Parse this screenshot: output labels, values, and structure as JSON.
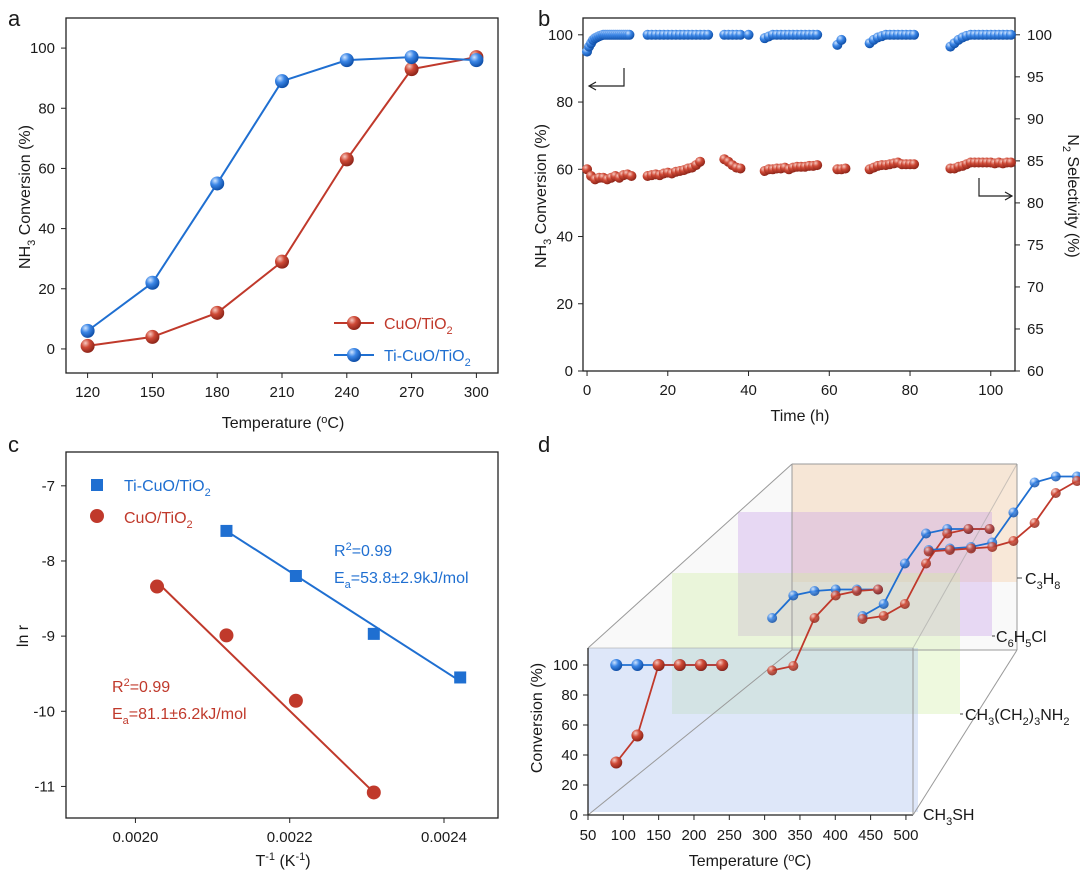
{
  "colors": {
    "red": "#c0392b",
    "blue": "#1f6fd1",
    "axis": "#222222"
  },
  "chart_data": [
    {
      "panel": "a",
      "type": "line",
      "xlabel": "Temperature (°C)",
      "ylabel": "NH3 Conversion (%)",
      "xlim": [
        110,
        310
      ],
      "ylim": [
        -8,
        110
      ],
      "x": [
        120,
        150,
        180,
        210,
        240,
        270,
        300
      ],
      "xticks": [
        "120",
        "150",
        "180",
        "210",
        "240",
        "270",
        "300"
      ],
      "yticks": [
        "0",
        "20",
        "40",
        "60",
        "80",
        "100"
      ],
      "series": [
        {
          "name": "CuO/TiO2",
          "color": "red",
          "values": [
            1,
            4,
            12,
            29,
            63,
            93,
            97
          ]
        },
        {
          "name": "Ti-CuO/TiO2",
          "color": "blue",
          "values": [
            6,
            22,
            55,
            89,
            96,
            97,
            96
          ]
        }
      ],
      "legend": [
        {
          "text": "CuO/TiO",
          "sub": "2"
        },
        {
          "text": "Ti-CuO/TiO",
          "sub": "2"
        }
      ]
    },
    {
      "panel": "b",
      "type": "scatter",
      "xlabel": "Time (h)",
      "ylabel_left": "NH3 Conversion (%)",
      "ylabel_right": "N2 Selectivity (%)",
      "xlim": [
        -1,
        106
      ],
      "ylim_left": [
        0,
        105
      ],
      "ylim_right": [
        60,
        102
      ],
      "xticks": [
        "0",
        "20",
        "40",
        "60",
        "80",
        "100"
      ],
      "yticks_left": [
        "0",
        "20",
        "40",
        "60",
        "80",
        "100"
      ],
      "yticks_right": [
        "60",
        "65",
        "70",
        "75",
        "80",
        "85",
        "90",
        "95",
        "100"
      ],
      "series": [
        {
          "name": "NH3 Conversion",
          "color": "blue",
          "axis": "left",
          "x": [
            0,
            0.5,
            1,
            1.5,
            2,
            2.5,
            3,
            3.5,
            4,
            4.5,
            5,
            5.5,
            6,
            6.5,
            7,
            7.5,
            8,
            8.5,
            9,
            9.5,
            10,
            10.5,
            15,
            16,
            17,
            18,
            19,
            20,
            21,
            22,
            23,
            24,
            25,
            26,
            27,
            28,
            29,
            30,
            34,
            35,
            36,
            37,
            38,
            40,
            44,
            45,
            46,
            47,
            48,
            49,
            50,
            51,
            52,
            53,
            54,
            55,
            56,
            57,
            62,
            63,
            70,
            71,
            72,
            73,
            74,
            75,
            76,
            77,
            78,
            79,
            80,
            81,
            90,
            91,
            92,
            93,
            94,
            95,
            96,
            97,
            98,
            99,
            100,
            101,
            102,
            103,
            104,
            105
          ],
          "y": [
            95,
            96.5,
            97.5,
            98.5,
            99,
            99.3,
            99.6,
            99.8,
            100,
            100,
            100,
            100,
            100,
            100,
            100,
            100,
            100,
            100,
            100,
            100,
            100,
            100,
            100,
            100,
            100,
            100,
            100,
            100,
            100,
            100,
            100,
            100,
            100,
            100,
            100,
            100,
            100,
            100,
            100,
            100,
            100,
            100,
            100,
            100,
            99,
            99.5,
            100,
            100,
            100,
            100,
            100,
            100,
            100,
            100,
            100,
            100,
            100,
            100,
            97,
            98.5,
            97.5,
            98.5,
            99.2,
            99.6,
            100,
            100,
            100,
            100,
            100,
            100,
            100,
            100,
            96.5,
            97.5,
            98.5,
            99.2,
            99.7,
            100,
            100,
            100,
            100,
            100,
            100,
            100,
            100,
            100,
            100,
            100
          ]
        },
        {
          "name": "N2 Selectivity",
          "color": "red",
          "axis": "right",
          "x": [
            0,
            1,
            2,
            3,
            4,
            5,
            6,
            7,
            8,
            9,
            10,
            11,
            15,
            16,
            17,
            18,
            19,
            20,
            21,
            22,
            23,
            24,
            25,
            26,
            27,
            28,
            34,
            35,
            36,
            37,
            38,
            44,
            45,
            46,
            47,
            48,
            49,
            50,
            51,
            52,
            53,
            54,
            55,
            56,
            57,
            62,
            63,
            64,
            70,
            71,
            72,
            73,
            74,
            75,
            76,
            77,
            78,
            79,
            80,
            81,
            90,
            91,
            92,
            93,
            94,
            95,
            96,
            97,
            98,
            99,
            100,
            101,
            102,
            103,
            104,
            105
          ],
          "y": [
            84,
            83.2,
            82.8,
            83,
            83,
            82.8,
            83,
            83.2,
            83,
            83.3,
            83.4,
            83.2,
            83.2,
            83.3,
            83.4,
            83.3,
            83.5,
            83.6,
            83.5,
            83.7,
            83.8,
            83.9,
            84.1,
            84.2,
            84.5,
            84.9,
            85.2,
            84.9,
            84.5,
            84.2,
            84.1,
            83.8,
            84,
            84,
            84.1,
            84.1,
            84.2,
            84,
            84.2,
            84.3,
            84.3,
            84.3,
            84.4,
            84.4,
            84.5,
            84,
            84,
            84.1,
            84,
            84.2,
            84.4,
            84.5,
            84.5,
            84.6,
            84.7,
            84.8,
            84.6,
            84.6,
            84.6,
            84.6,
            84.1,
            84.1,
            84.3,
            84.4,
            84.6,
            84.8,
            84.8,
            84.8,
            84.8,
            84.8,
            84.8,
            84.7,
            84.8,
            84.7,
            84.8,
            84.8
          ]
        }
      ]
    },
    {
      "panel": "c",
      "type": "scatter",
      "xlabel": "T-1 (K-1)",
      "ylabel": "ln r",
      "xlim": [
        0.00191,
        0.00247
      ],
      "ylim": [
        -11.42,
        -6.55
      ],
      "xticks": [
        "0.0020",
        "0.0022",
        "0.0024"
      ],
      "yticks": [
        "-7",
        "-8",
        "-9",
        "-10",
        "-11"
      ],
      "series": [
        {
          "name": "Ti-CuO/TiO2",
          "color": "blue",
          "marker": "square",
          "x": [
            0.002118,
            0.002208,
            0.002309,
            0.002421
          ],
          "y": [
            -7.6,
            -8.2,
            -8.97,
            -9.55
          ],
          "fit": {
            "x": [
              0.002118,
              0.002421
            ],
            "y": [
              -7.6,
              -9.6
            ]
          },
          "r2": {
            "text": "R",
            "sup": "2",
            "rest": "=0.99"
          },
          "ea": {
            "text": "E",
            "sub": "a",
            "rest": "=53.8±2.9kJ/mol"
          }
        },
        {
          "name": "CuO/TiO2",
          "color": "red",
          "marker": "circle",
          "x": [
            0.002028,
            0.002118,
            0.002208,
            0.002309
          ],
          "y": [
            -8.34,
            -8.99,
            -9.86,
            -11.08
          ],
          "fit": {
            "x": [
              0.002028,
              0.002309
            ],
            "y": [
              -8.28,
              -11.08
            ]
          },
          "r2": {
            "text": "R",
            "sup": "2",
            "rest": "=0.99"
          },
          "ea": {
            "text": "E",
            "sub": "a",
            "rest": "=81.1±6.2kJ/mol"
          }
        }
      ],
      "legend": [
        {
          "text": "Ti-CuO/TiO",
          "sub": "2"
        },
        {
          "text": "CuO/TiO",
          "sub": "2"
        }
      ]
    },
    {
      "panel": "d",
      "type": "line",
      "projection": "3d",
      "xlabel": "Temperature (°C)",
      "ylabel": "Conversion (%)",
      "xticks": [
        "50",
        "100",
        "150",
        "200",
        "250",
        "300",
        "350",
        "400",
        "450",
        "500"
      ],
      "yticks": [
        "0",
        "20",
        "40",
        "60",
        "80",
        "100"
      ],
      "depth_labels": [
        {
          "text": "C",
          "sub1": "3",
          "mid": "H",
          "sub2": "8"
        },
        {
          "text": "C",
          "sub1": "6",
          "mid": "H",
          "sub2": "5",
          "tail": "Cl"
        },
        {
          "text": "CH",
          "sub1": "3",
          "mid": "(CH",
          "sub2": "2",
          "mid2": ")",
          "sub3": "3",
          "tail": "NH",
          "sub4": "2"
        },
        {
          "text": "CH",
          "sub1": "3",
          "mid": "SH"
        }
      ],
      "groups": [
        {
          "layer": "CH3SH",
          "series": [
            {
              "color": "blue",
              "x": [
                90,
                120,
                150,
                180,
                210,
                240
              ],
              "y": [
                100,
                100,
                100,
                100,
                100,
                100
              ]
            },
            {
              "color": "red",
              "x": [
                90,
                120,
                150,
                180,
                210,
                240
              ],
              "y": [
                35,
                53,
                100,
                100,
                100,
                100
              ]
            }
          ]
        },
        {
          "layer": "CH3(CH2)3NH2",
          "series": [
            {
              "color": "blue",
              "x": [
                240,
                270,
                300,
                330,
                360,
                390
              ],
              "y": [
                80,
                95,
                98,
                99,
                99,
                99
              ]
            },
            {
              "color": "red",
              "x": [
                240,
                270,
                300,
                330,
                360,
                390
              ],
              "y": [
                45,
                48,
                80,
                95,
                98,
                99
              ]
            }
          ]
        },
        {
          "layer": "C6H5Cl",
          "series": [
            {
              "color": "blue",
              "x": [
                300,
                330,
                360,
                390,
                420,
                450,
                480
              ],
              "y": [
                40,
                48,
                75,
                95,
                98,
                98,
                98
              ]
            },
            {
              "color": "red",
              "x": [
                300,
                330,
                360,
                390,
                420,
                450,
                480
              ],
              "y": [
                38,
                40,
                48,
                75,
                95,
                98,
                98
              ]
            }
          ]
        },
        {
          "layer": "C3H8",
          "series": [
            {
              "color": "blue",
              "x": [
                330,
                360,
                390,
                420,
                450,
                480,
                510,
                540,
                570
              ],
              "y": [
                50,
                51,
                52,
                55,
                75,
                95,
                99,
                99,
                99
              ]
            },
            {
              "color": "red",
              "x": [
                330,
                360,
                390,
                420,
                450,
                480,
                510,
                540,
                570
              ],
              "y": [
                49,
                50,
                51,
                52,
                56,
                68,
                88,
                96,
                98
              ]
            }
          ]
        }
      ]
    }
  ]
}
